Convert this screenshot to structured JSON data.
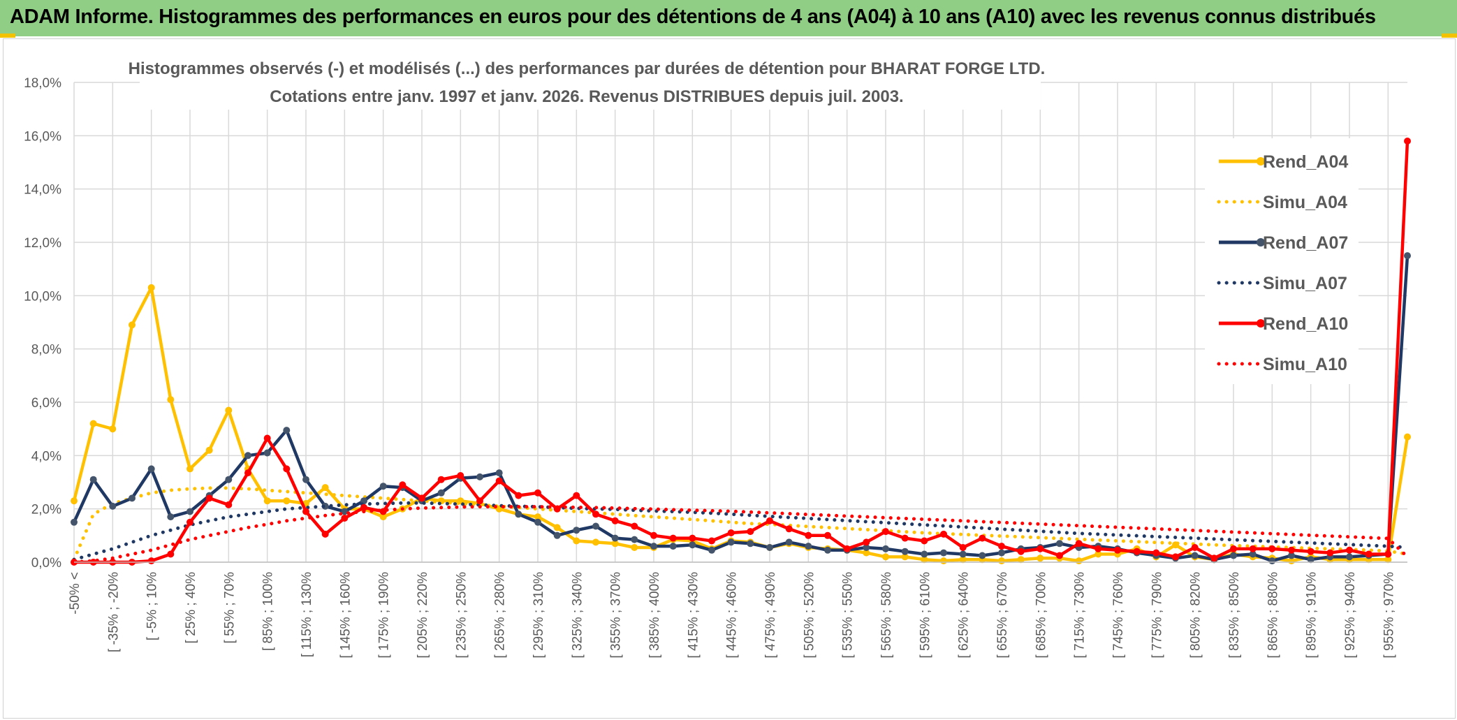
{
  "banner": {
    "title": "ADAM Informe. Histogrammes des performances en euros pour des détentions de 4 ans (A04) à 10 ans (A10) avec les revenus connus distribués"
  },
  "chart_data": {
    "type": "line",
    "title": "Histogrammes observés (-) et modélisés (...) des performances par durées de détention pour BHARAT FORGE LTD.",
    "subtitle": "Cotations entre janv. 1997 et janv. 2026. Revenus DISTRIBUES depuis juil. 2003.",
    "xlabel": "",
    "ylabel": "",
    "ylim": [
      0,
      18
    ],
    "yticks": [
      "0,0%",
      "2,0%",
      "4,0%",
      "6,0%",
      "8,0%",
      "10,0%",
      "12,0%",
      "14,0%",
      "16,0%",
      "18,0%"
    ],
    "grid": true,
    "legend_position": "top-right",
    "x_tick_labels": [
      "-50% <",
      "[ -35% ; -20%",
      "[ -5% ; 10%",
      "[ 25% ; 40%",
      "[ 55% ; 70%",
      "[ 85% ; 100%",
      "[ 115% ; 130%",
      "[ 145% ; 160%",
      "[ 175% ; 190%",
      "[ 205% ; 220%",
      "[ 235% ; 250%",
      "[ 265% ; 280%",
      "[ 295% ; 310%",
      "[ 325% ; 340%",
      "[ 355% ; 370%",
      "[ 385% ; 400%",
      "[ 415% ; 430%",
      "[ 445% ; 460%",
      "[ 475% ; 490%",
      "[ 505% ; 520%",
      "[ 535% ; 550%",
      "[ 565% ; 580%",
      "[ 595% ; 610%",
      "[ 625% ; 640%",
      "[ 655% ; 670%",
      "[ 685% ; 700%",
      "[ 715% ; 730%",
      "[ 745% ; 760%",
      "[ 775% ; 790%",
      "[ 805% ; 820%",
      "[ 835% ; 850%",
      "[ 865% ; 880%",
      "[ 895% ; 910%",
      "[ 925% ; 940%",
      "[ 955% ; 970%"
    ],
    "n_points": 70,
    "series": [
      {
        "name": "Rend_A04",
        "color": "#ffc000",
        "style": "solid-marker",
        "values": [
          2.3,
          5.2,
          5.0,
          8.9,
          10.3,
          6.1,
          3.5,
          4.2,
          5.7,
          3.5,
          2.3,
          2.3,
          2.2,
          2.8,
          2.0,
          2.0,
          1.7,
          2.0,
          2.4,
          2.3,
          2.3,
          2.2,
          2.0,
          1.8,
          1.7,
          1.3,
          0.8,
          0.75,
          0.7,
          0.55,
          0.55,
          0.85,
          0.8,
          0.5,
          0.8,
          0.75,
          0.55,
          0.7,
          0.55,
          0.5,
          0.45,
          0.35,
          0.2,
          0.2,
          0.1,
          0.05,
          0.1,
          0.1,
          0.05,
          0.1,
          0.15,
          0.15,
          0.05,
          0.3,
          0.3,
          0.5,
          0.2,
          0.65,
          0.2,
          0.1,
          0.3,
          0.2,
          0.15,
          0.05,
          0.2,
          0.1,
          0.1,
          0.1,
          0.1,
          4.7
        ]
      },
      {
        "name": "Simu_A04",
        "color": "#ffc000",
        "style": "dotted",
        "values": [
          0.1,
          1.8,
          2.2,
          2.4,
          2.6,
          2.7,
          2.75,
          2.78,
          2.78,
          2.75,
          2.7,
          2.65,
          2.6,
          2.55,
          2.5,
          2.45,
          2.4,
          2.35,
          2.3,
          2.25,
          2.2,
          2.15,
          2.1,
          2.05,
          2.0,
          1.95,
          1.9,
          1.85,
          1.8,
          1.75,
          1.7,
          1.65,
          1.6,
          1.55,
          1.5,
          1.45,
          1.42,
          1.38,
          1.34,
          1.3,
          1.26,
          1.22,
          1.18,
          1.14,
          1.1,
          1.07,
          1.04,
          1.01,
          0.98,
          0.95,
          0.92,
          0.89,
          0.86,
          0.83,
          0.8,
          0.77,
          0.74,
          0.71,
          0.68,
          0.65,
          0.62,
          0.6,
          0.57,
          0.55,
          0.52,
          0.5,
          0.48,
          0.45,
          0.42,
          0.3
        ]
      },
      {
        "name": "Rend_A07",
        "color": "#1f3864",
        "style": "solid-marker",
        "values": [
          1.5,
          3.1,
          2.1,
          2.4,
          3.5,
          1.7,
          1.9,
          2.5,
          3.1,
          4.0,
          4.1,
          4.95,
          3.1,
          2.1,
          1.9,
          2.3,
          2.85,
          2.8,
          2.3,
          2.6,
          3.15,
          3.2,
          3.35,
          1.8,
          1.5,
          1.0,
          1.2,
          1.35,
          0.9,
          0.85,
          0.6,
          0.6,
          0.65,
          0.45,
          0.75,
          0.7,
          0.55,
          0.75,
          0.6,
          0.45,
          0.45,
          0.55,
          0.5,
          0.4,
          0.3,
          0.35,
          0.3,
          0.25,
          0.35,
          0.5,
          0.55,
          0.7,
          0.55,
          0.6,
          0.5,
          0.35,
          0.25,
          0.15,
          0.25,
          0.1,
          0.25,
          0.3,
          0.05,
          0.25,
          0.1,
          0.2,
          0.2,
          0.25,
          0.3,
          11.5
        ]
      },
      {
        "name": "Simu_A07",
        "color": "#1f3864",
        "style": "dotted",
        "values": [
          0.1,
          0.3,
          0.5,
          0.75,
          1.0,
          1.2,
          1.4,
          1.55,
          1.7,
          1.8,
          1.9,
          2.0,
          2.05,
          2.1,
          2.15,
          2.18,
          2.2,
          2.22,
          2.22,
          2.2,
          2.18,
          2.15,
          2.12,
          2.1,
          2.08,
          2.05,
          2.02,
          2.0,
          1.98,
          1.95,
          1.92,
          1.9,
          1.87,
          1.84,
          1.8,
          1.76,
          1.72,
          1.68,
          1.64,
          1.6,
          1.56,
          1.52,
          1.48,
          1.44,
          1.4,
          1.36,
          1.32,
          1.28,
          1.24,
          1.2,
          1.16,
          1.12,
          1.08,
          1.05,
          1.02,
          0.99,
          0.96,
          0.93,
          0.9,
          0.87,
          0.84,
          0.81,
          0.78,
          0.75,
          0.72,
          0.69,
          0.66,
          0.63,
          0.6,
          0.55
        ]
      },
      {
        "name": "Rend_A10",
        "color": "#ff0000",
        "style": "solid-marker",
        "values": [
          0.0,
          0.0,
          0.0,
          0.0,
          0.05,
          0.3,
          1.5,
          2.4,
          2.15,
          3.35,
          4.65,
          3.5,
          1.9,
          1.05,
          1.65,
          2.05,
          1.9,
          2.9,
          2.4,
          3.1,
          3.25,
          2.3,
          3.05,
          2.5,
          2.6,
          2.0,
          2.5,
          1.8,
          1.55,
          1.35,
          1.0,
          0.9,
          0.9,
          0.8,
          1.1,
          1.15,
          1.55,
          1.25,
          1.0,
          1.0,
          0.5,
          0.75,
          1.15,
          0.9,
          0.8,
          1.05,
          0.55,
          0.9,
          0.6,
          0.4,
          0.5,
          0.25,
          0.7,
          0.5,
          0.45,
          0.4,
          0.35,
          0.2,
          0.55,
          0.15,
          0.5,
          0.5,
          0.5,
          0.45,
          0.4,
          0.35,
          0.45,
          0.3,
          0.3,
          15.8
        ]
      },
      {
        "name": "Simu_A10",
        "color": "#ff0000",
        "style": "dotted",
        "values": [
          0.0,
          0.05,
          0.15,
          0.3,
          0.45,
          0.65,
          0.85,
          1.0,
          1.15,
          1.3,
          1.42,
          1.55,
          1.65,
          1.75,
          1.83,
          1.9,
          1.95,
          2.0,
          2.03,
          2.05,
          2.07,
          2.08,
          2.08,
          2.08,
          2.08,
          2.07,
          2.06,
          2.05,
          2.03,
          2.01,
          1.99,
          1.97,
          1.95,
          1.93,
          1.91,
          1.88,
          1.85,
          1.82,
          1.79,
          1.76,
          1.73,
          1.7,
          1.67,
          1.64,
          1.61,
          1.58,
          1.55,
          1.52,
          1.49,
          1.46,
          1.43,
          1.4,
          1.37,
          1.34,
          1.31,
          1.28,
          1.25,
          1.22,
          1.19,
          1.16,
          1.13,
          1.1,
          1.07,
          1.04,
          1.01,
          0.98,
          0.95,
          0.92,
          0.89,
          0.2
        ]
      }
    ]
  }
}
